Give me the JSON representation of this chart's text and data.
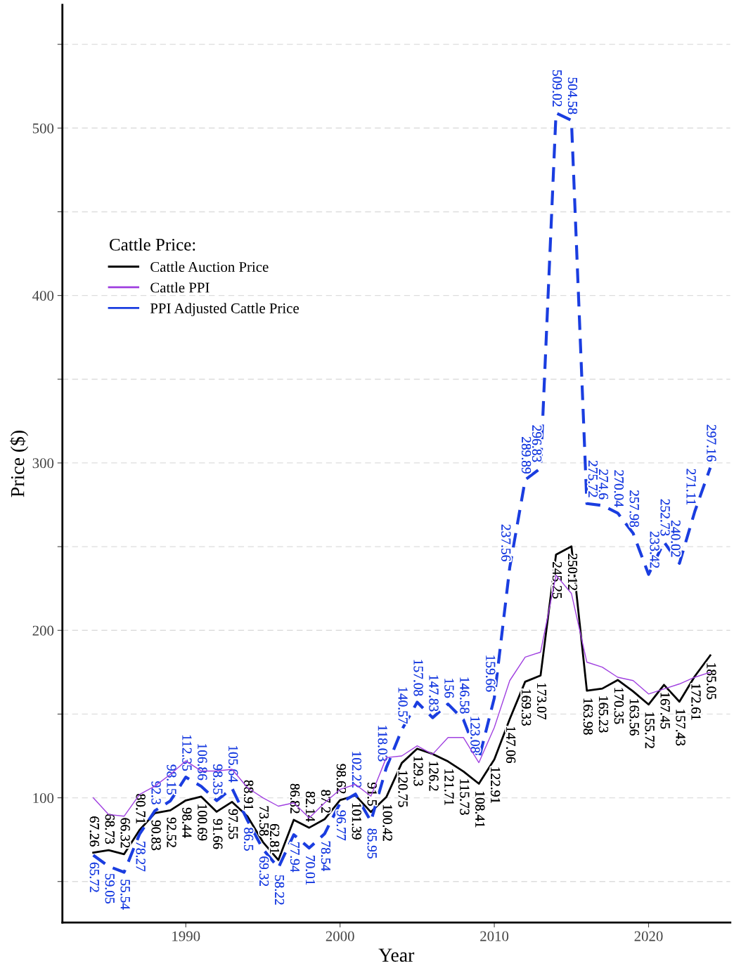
{
  "chart_data": {
    "type": "line",
    "xlabel": "Year",
    "ylabel": "Price ($)",
    "legend_title": "Cattle Price:",
    "legend": "top left",
    "grid": "y",
    "data_labels": true,
    "x": [
      1984,
      1985,
      1986,
      1987,
      1988,
      1989,
      1990,
      1991,
      1992,
      1993,
      1994,
      1995,
      1996,
      1997,
      1998,
      1999,
      2000,
      2001,
      2002,
      2003,
      2004,
      2005,
      2006,
      2007,
      2008,
      2009,
      2010,
      2011,
      2012,
      2013,
      2014,
      2015,
      2016,
      2017,
      2018,
      2019,
      2020,
      2021,
      2022,
      2023,
      2024
    ],
    "xlim": [
      1982,
      2025.3
    ],
    "xticks": [
      1990,
      2000,
      2010,
      2020
    ],
    "ylim": [
      25.5,
      573.6
    ],
    "yticks": [
      {
        "value": 50,
        "label": null
      },
      100,
      {
        "value": 150,
        "label": null
      },
      200,
      {
        "value": 250,
        "label": null
      },
      300,
      {
        "value": 350,
        "label": null
      },
      400,
      {
        "value": 450,
        "label": null
      },
      500,
      {
        "value": 550,
        "label": null
      }
    ],
    "series": [
      {
        "name": "Cattle Auction Price",
        "color": "#000000",
        "line_style": "solid",
        "data_labels": true,
        "values": [
          67.26,
          68.73,
          66.32,
          80.71,
          90.83,
          92.52,
          98.44,
          100.69,
          91.66,
          97.55,
          88.91,
          73.58,
          62.81,
          86.82,
          82.14,
          87.2,
          98.62,
          101.39,
          91.5,
          100.42,
          120.75,
          129.3,
          126.2,
          121.71,
          115.73,
          108.41,
          122.91,
          147.06,
          169.33,
          173.07,
          245.25,
          250.12,
          163.98,
          165.23,
          170.35,
          163.56,
          155.72,
          167.45,
          157.43,
          172.61,
          185.05
        ]
      },
      {
        "name": "Cattle PPI",
        "color": "#a040e0",
        "line_style": "solid",
        "data_labels": false,
        "values": [
          100,
          90,
          89,
          102,
          107,
          114,
          122,
          116,
          116,
          117,
          106,
          100,
          95,
          97,
          88,
          97,
          105,
          108,
          101,
          124,
          125,
          131,
          126,
          136,
          136,
          121,
          142,
          170,
          184,
          187,
          233,
          222,
          181,
          178,
          172,
          170,
          162,
          165,
          168,
          172,
          175
        ]
      },
      {
        "name": "PPI Adjusted Cattle Price",
        "color": "#1a3de0",
        "line_style": "dashed",
        "data_labels": true,
        "values": [
          65.72,
          59.05,
          55.54,
          78.27,
          92.3,
          98.15,
          112.35,
          106.86,
          98.35,
          105.64,
          86.5,
          69.32,
          58.22,
          77.94,
          70.01,
          78.54,
          96.77,
          102.22,
          85.95,
          118.03,
          140.57,
          157.08,
          147.83,
          156,
          146.58,
          123.08,
          159.66,
          237.56,
          289.89,
          296.83,
          509.02,
          504.58,
          275.72,
          274.6,
          270.04,
          257.98,
          233.42,
          252.73,
          240.02,
          271.11,
          297.16
        ]
      }
    ]
  }
}
